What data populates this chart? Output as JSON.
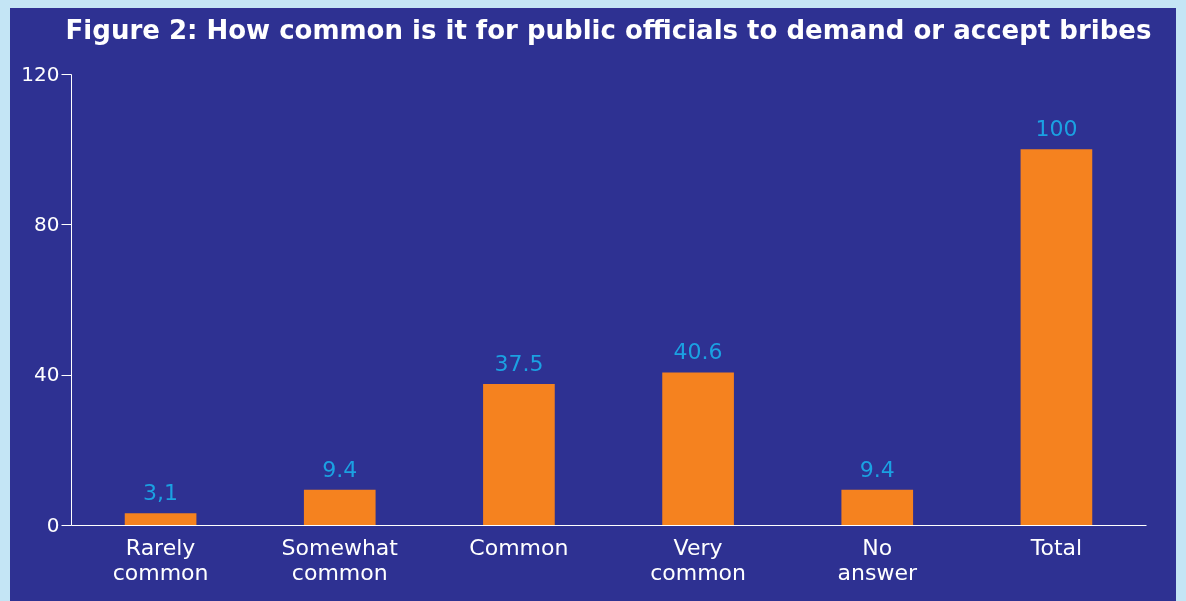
{
  "chart_data": {
    "type": "bar",
    "title": "Figure 2: How common is it for public officials to demand or accept bribes",
    "categories": [
      "Rarely common",
      "Somewhat common",
      "Common",
      "Very common",
      "No answer",
      "Total"
    ],
    "values": [
      3.1,
      9.4,
      37.5,
      40.6,
      9.4,
      100
    ],
    "value_labels": [
      "3,1",
      "9.4",
      "37.5",
      "40.6",
      "9.4",
      "100"
    ],
    "color": "#f5821f",
    "ylim": [
      0,
      120
    ],
    "yticks": [
      0,
      40,
      80,
      120
    ],
    "grid": false
  }
}
